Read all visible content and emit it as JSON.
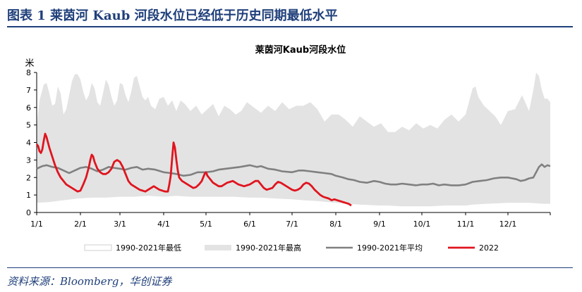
{
  "header": {
    "figure_title": "图表 1   莱茵河 Kaub 河段水位已经低于历史同期最低水平"
  },
  "source": {
    "text": "资料来源：Bloomberg，华创证券"
  },
  "colors": {
    "brand": "#1f3f7a",
    "band_max": "#e3e3e3",
    "band_min": "#ffffff",
    "avg_line": "#808080",
    "year_2022": "#e0141e"
  },
  "chart_data": {
    "type": "area",
    "title": "莱茵河Kaub河段水位",
    "ylabel": "米",
    "xlabel": "",
    "ylim": [
      0,
      8
    ],
    "yticks": [
      "0",
      "1",
      "2",
      "3",
      "4",
      "5",
      "6",
      "7",
      "8"
    ],
    "xlim": [
      1,
      365
    ],
    "xticks": [
      {
        "label": "1/1",
        "day": 1
      },
      {
        "label": "2/1",
        "day": 32
      },
      {
        "label": "3/1",
        "day": 60
      },
      {
        "label": "4/1",
        "day": 91
      },
      {
        "label": "5/1",
        "day": 121
      },
      {
        "label": "6/1",
        "day": 152
      },
      {
        "label": "7/1",
        "day": 182
      },
      {
        "label": "8/1",
        "day": 213
      },
      {
        "label": "9/1",
        "day": 244
      },
      {
        "label": "10/1",
        "day": 274
      },
      {
        "label": "11/1",
        "day": 305
      },
      {
        "label": "12/1",
        "day": 335
      }
    ],
    "legend": [
      "1990-2021年最低",
      "1990-2021年最高",
      "1990-2021年平均",
      "2022"
    ],
    "legend_position": "bottom",
    "series": [
      {
        "name": "1990-2021年最高",
        "kind": "band_max",
        "x": [
          1,
          3,
          6,
          8,
          10,
          12,
          14,
          16,
          18,
          20,
          22,
          24,
          26,
          28,
          30,
          32,
          34,
          36,
          38,
          40,
          42,
          44,
          46,
          48,
          50,
          52,
          54,
          56,
          58,
          60,
          62,
          64,
          66,
          68,
          70,
          72,
          74,
          76,
          78,
          80,
          82,
          85,
          88,
          91,
          94,
          97,
          100,
          103,
          106,
          110,
          114,
          118,
          122,
          126,
          130,
          134,
          138,
          142,
          146,
          150,
          155,
          160,
          165,
          170,
          175,
          180,
          185,
          190,
          195,
          200,
          205,
          210,
          215,
          220,
          225,
          230,
          235,
          240,
          245,
          250,
          255,
          260,
          265,
          270,
          275,
          280,
          285,
          290,
          295,
          300,
          305,
          308,
          310,
          312,
          314,
          318,
          322,
          326,
          330,
          335,
          340,
          345,
          350,
          353,
          355,
          357,
          359,
          361,
          363,
          365
        ],
        "values": [
          4.9,
          6.4,
          7.3,
          7.4,
          6.8,
          6.1,
          6.2,
          7.2,
          6.8,
          5.6,
          5.9,
          6.7,
          7.5,
          7.9,
          7.9,
          7.6,
          6.9,
          6.4,
          6.7,
          7.4,
          7.1,
          6.3,
          6.1,
          6.8,
          7.6,
          7.3,
          6.6,
          6.1,
          6.4,
          7.4,
          7.3,
          6.7,
          6.3,
          6.9,
          7.7,
          7.8,
          7.2,
          6.6,
          6.4,
          6.6,
          6.1,
          5.9,
          6.5,
          6.6,
          6.1,
          6.4,
          5.8,
          6.4,
          6.2,
          5.8,
          6.1,
          5.6,
          5.9,
          6.2,
          5.5,
          6.1,
          5.9,
          5.6,
          5.8,
          6.3,
          6.0,
          5.7,
          6.1,
          5.8,
          6.3,
          5.9,
          6.1,
          6.1,
          6.3,
          5.9,
          5.2,
          5.6,
          5.6,
          5.3,
          4.9,
          5.5,
          5.2,
          4.9,
          5.1,
          4.6,
          4.6,
          4.9,
          4.7,
          5.1,
          4.8,
          5.0,
          4.8,
          5.3,
          5.6,
          5.2,
          5.6,
          6.5,
          7.1,
          7.2,
          6.6,
          6.1,
          5.8,
          5.5,
          5.0,
          5.8,
          5.9,
          6.7,
          5.8,
          7.0,
          8.0,
          7.8,
          7.0,
          6.5,
          6.5,
          6.3
        ]
      },
      {
        "name": "1990-2021年最低",
        "kind": "band_min",
        "x": [
          1,
          10,
          20,
          30,
          40,
          50,
          60,
          70,
          80,
          91,
          100,
          110,
          121,
          130,
          140,
          152,
          160,
          170,
          182,
          190,
          200,
          213,
          220,
          230,
          244,
          250,
          260,
          274,
          280,
          290,
          305,
          310,
          320,
          335,
          340,
          350,
          360,
          365
        ],
        "values": [
          0.55,
          0.6,
          0.7,
          0.8,
          0.85,
          0.85,
          0.9,
          0.9,
          0.95,
          0.9,
          0.95,
          0.9,
          0.9,
          0.9,
          0.9,
          0.85,
          0.85,
          0.8,
          0.75,
          0.7,
          0.65,
          0.55,
          0.5,
          0.45,
          0.4,
          0.4,
          0.35,
          0.35,
          0.35,
          0.4,
          0.4,
          0.45,
          0.5,
          0.55,
          0.55,
          0.55,
          0.5,
          0.5
        ]
      },
      {
        "name": "1990-2021年平均",
        "kind": "line_avg",
        "x": [
          1,
          5,
          8,
          12,
          16,
          20,
          24,
          28,
          32,
          36,
          40,
          44,
          48,
          52,
          56,
          60,
          64,
          68,
          72,
          76,
          80,
          85,
          91,
          96,
          100,
          105,
          110,
          115,
          121,
          126,
          130,
          135,
          140,
          145,
          152,
          157,
          160,
          165,
          170,
          175,
          182,
          187,
          190,
          195,
          200,
          205,
          210,
          213,
          218,
          222,
          226,
          230,
          235,
          240,
          244,
          248,
          252,
          256,
          260,
          265,
          270,
          274,
          278,
          282,
          286,
          290,
          295,
          300,
          305,
          310,
          315,
          320,
          325,
          330,
          335,
          338,
          341,
          344,
          347,
          350,
          353,
          355,
          357,
          359,
          361,
          363,
          365
        ],
        "values": [
          2.5,
          2.65,
          2.7,
          2.6,
          2.55,
          2.4,
          2.25,
          2.4,
          2.55,
          2.6,
          2.5,
          2.35,
          2.45,
          2.6,
          2.55,
          2.5,
          2.45,
          2.55,
          2.6,
          2.45,
          2.5,
          2.45,
          2.3,
          2.25,
          2.2,
          2.1,
          2.15,
          2.3,
          2.3,
          2.35,
          2.45,
          2.5,
          2.55,
          2.6,
          2.7,
          2.6,
          2.65,
          2.5,
          2.45,
          2.35,
          2.3,
          2.4,
          2.4,
          2.35,
          2.3,
          2.25,
          2.2,
          2.1,
          2.0,
          1.9,
          1.85,
          1.75,
          1.7,
          1.8,
          1.75,
          1.65,
          1.6,
          1.6,
          1.65,
          1.6,
          1.55,
          1.6,
          1.6,
          1.65,
          1.55,
          1.6,
          1.55,
          1.55,
          1.6,
          1.75,
          1.8,
          1.85,
          1.95,
          2.0,
          2.0,
          1.95,
          1.9,
          1.8,
          1.85,
          1.95,
          2.0,
          2.3,
          2.6,
          2.75,
          2.6,
          2.7,
          2.65
        ]
      },
      {
        "name": "2022",
        "kind": "line_2022",
        "x": [
          1,
          2,
          3,
          4,
          5,
          6,
          7,
          8,
          9,
          10,
          12,
          14,
          16,
          18,
          20,
          22,
          24,
          26,
          28,
          30,
          32,
          34,
          36,
          37,
          38,
          39,
          40,
          41,
          42,
          44,
          46,
          48,
          50,
          52,
          54,
          56,
          58,
          60,
          62,
          64,
          66,
          68,
          70,
          72,
          74,
          76,
          78,
          80,
          82,
          84,
          86,
          88,
          90,
          92,
          94,
          95,
          96,
          97,
          98,
          99,
          100,
          101,
          102,
          104,
          106,
          108,
          110,
          112,
          114,
          116,
          118,
          120,
          121,
          122,
          124,
          126,
          128,
          130,
          132,
          134,
          136,
          138,
          140,
          142,
          144,
          146,
          148,
          150,
          152,
          154,
          156,
          158,
          160,
          162,
          164,
          166,
          168,
          170,
          172,
          174,
          176,
          178,
          180,
          182,
          184,
          186,
          188,
          190,
          192,
          194,
          196,
          198,
          200,
          202,
          204,
          206,
          208,
          210,
          212,
          214,
          216,
          218,
          220,
          222,
          224
        ],
        "values": [
          3.9,
          3.8,
          3.5,
          3.4,
          3.6,
          4.1,
          4.5,
          4.3,
          4.0,
          3.7,
          3.2,
          2.7,
          2.3,
          2.0,
          1.8,
          1.6,
          1.5,
          1.4,
          1.3,
          1.2,
          1.25,
          1.6,
          2.0,
          2.3,
          2.6,
          3.0,
          3.3,
          3.2,
          2.9,
          2.5,
          2.3,
          2.2,
          2.2,
          2.3,
          2.5,
          2.9,
          3.0,
          2.9,
          2.6,
          2.2,
          1.8,
          1.6,
          1.5,
          1.4,
          1.3,
          1.25,
          1.2,
          1.3,
          1.4,
          1.5,
          1.4,
          1.3,
          1.25,
          1.2,
          1.2,
          1.6,
          2.1,
          3.1,
          4.0,
          3.7,
          3.0,
          2.4,
          2.0,
          1.8,
          1.7,
          1.6,
          1.5,
          1.4,
          1.45,
          1.6,
          1.8,
          2.2,
          2.3,
          2.1,
          1.9,
          1.7,
          1.6,
          1.5,
          1.5,
          1.6,
          1.7,
          1.75,
          1.8,
          1.7,
          1.6,
          1.55,
          1.5,
          1.55,
          1.6,
          1.7,
          1.8,
          1.8,
          1.6,
          1.4,
          1.3,
          1.35,
          1.4,
          1.6,
          1.75,
          1.7,
          1.6,
          1.5,
          1.4,
          1.3,
          1.25,
          1.3,
          1.4,
          1.6,
          1.7,
          1.65,
          1.5,
          1.3,
          1.15,
          1.0,
          0.9,
          0.85,
          0.8,
          0.7,
          0.75,
          0.7,
          0.65,
          0.6,
          0.55,
          0.5,
          0.4
        ]
      }
    ]
  }
}
